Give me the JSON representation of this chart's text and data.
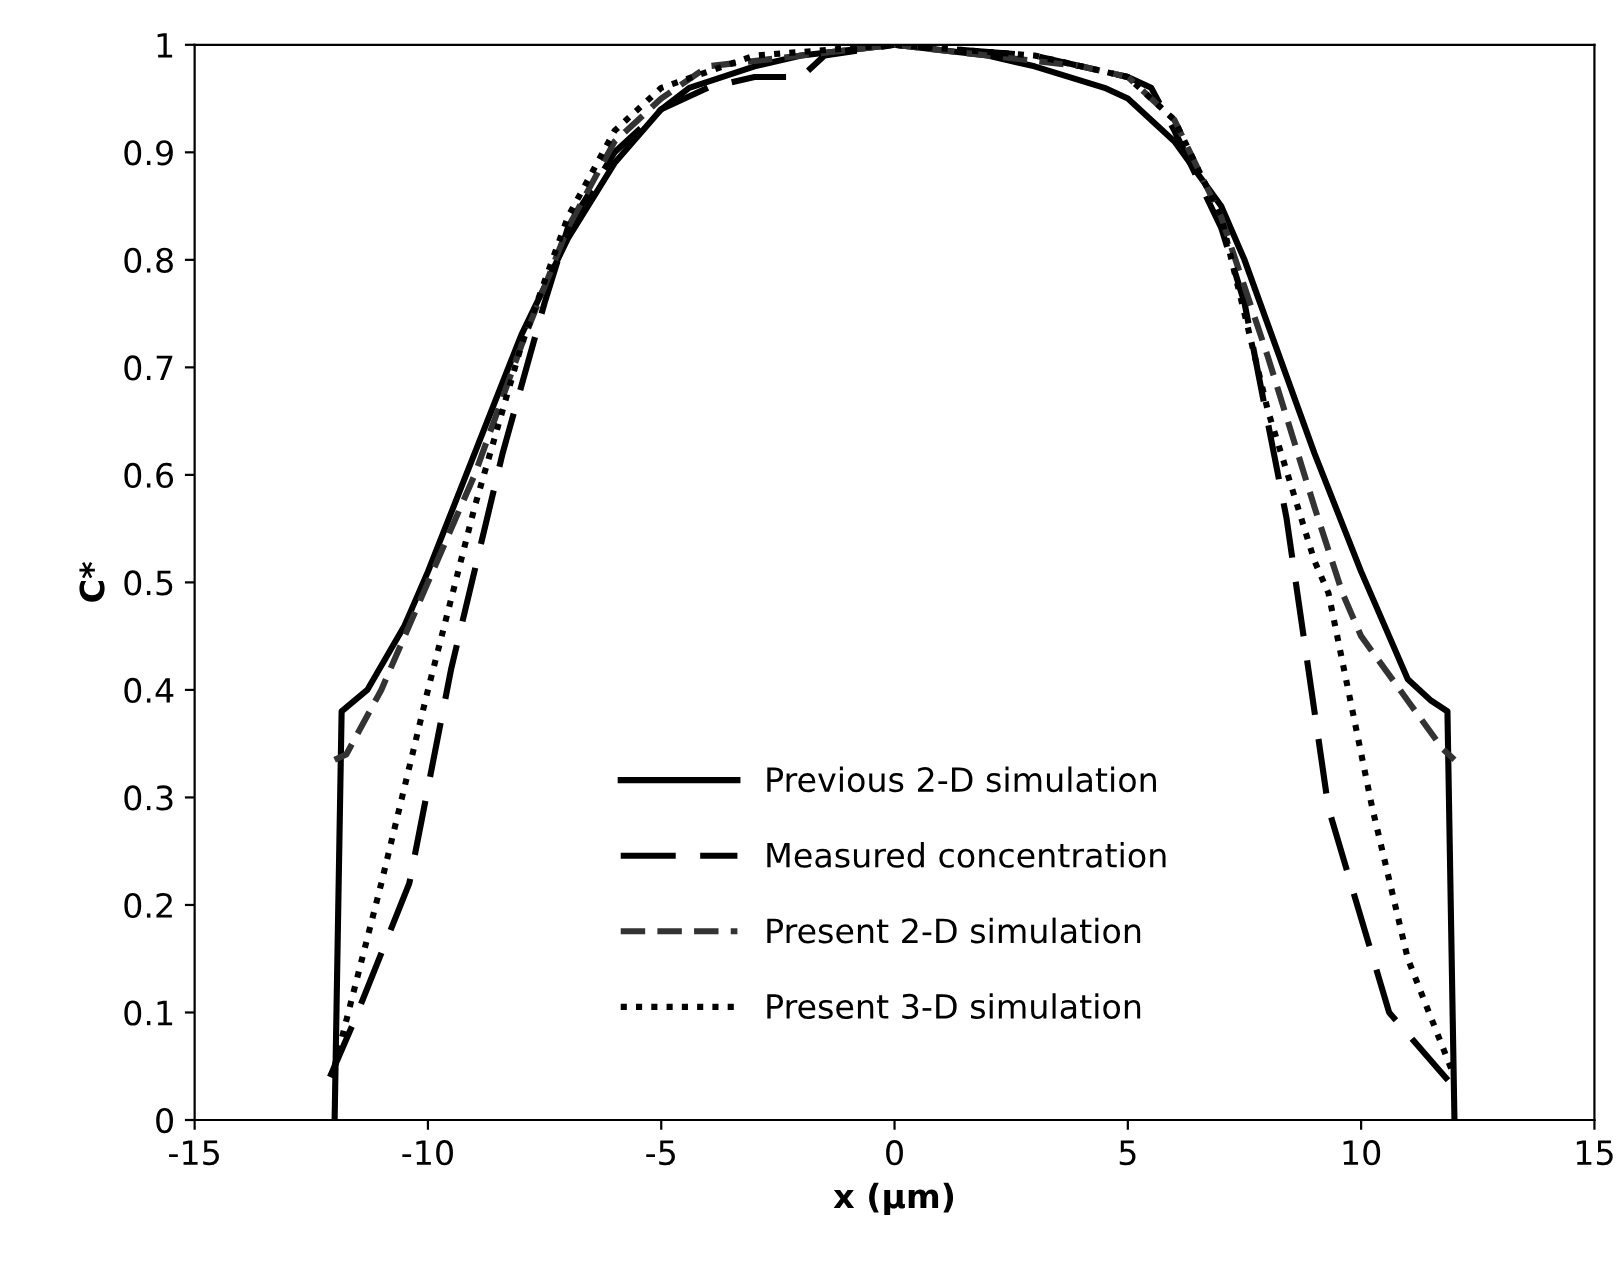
{
  "chart_data": {
    "type": "line",
    "xlabel": "x (μm)",
    "ylabel": "C*",
    "xlim": [
      -15,
      15
    ],
    "ylim": [
      0,
      1
    ],
    "xticks": [
      -15,
      -10,
      -5,
      0,
      5,
      10,
      15
    ],
    "yticks": [
      0,
      0.1,
      0.2,
      0.3,
      0.4,
      0.5,
      0.6,
      0.7,
      0.8,
      0.9,
      1
    ],
    "grid": false,
    "legend": "bottom",
    "series": [
      {
        "name": "Previous 2-D simulation",
        "color": "#000000",
        "line_style": "solid",
        "x": [
          -12,
          -11.85,
          -11.3,
          -10.5,
          -10,
          -9,
          -8,
          -7,
          -6,
          -5,
          -4.4,
          -3,
          -2,
          0,
          2,
          3,
          4.5,
          5,
          6,
          7,
          7.5,
          8,
          9,
          10,
          10.5,
          11,
          11.5,
          11.85,
          12
        ],
        "values": [
          0,
          0.38,
          0.4,
          0.46,
          0.51,
          0.62,
          0.73,
          0.82,
          0.89,
          0.94,
          0.96,
          0.98,
          0.99,
          1,
          0.99,
          0.98,
          0.96,
          0.95,
          0.91,
          0.85,
          0.8,
          0.74,
          0.62,
          0.51,
          0.46,
          0.41,
          0.39,
          0.38,
          0
        ]
      },
      {
        "name": "Measured concentration",
        "color": "#000000",
        "line_style": "longdash",
        "x": [
          -12.1,
          -11.6,
          -10.4,
          -9.5,
          -8.4,
          -7.5,
          -7,
          -6,
          -5,
          -4,
          -3,
          -2,
          -1.5,
          0,
          3,
          5,
          5.5,
          6,
          7,
          7.5,
          8.4,
          9.3,
          10.6,
          11.6,
          12
        ],
        "values": [
          0.04,
          0.09,
          0.22,
          0.42,
          0.62,
          0.76,
          0.83,
          0.9,
          0.94,
          0.96,
          0.97,
          0.97,
          0.99,
          1,
          0.99,
          0.97,
          0.96,
          0.92,
          0.83,
          0.76,
          0.56,
          0.29,
          0.1,
          0.05,
          0.03
        ]
      },
      {
        "name": "Present 2-D simulation",
        "color": "#333333",
        "line_style": "dashed",
        "x": [
          -12,
          -11.75,
          -11,
          -10,
          -9,
          -8,
          -7,
          -6,
          -5,
          -4,
          -2,
          0,
          2,
          4,
          5,
          6,
          7,
          8,
          9,
          9.6,
          10,
          11,
          11.75,
          12
        ],
        "values": [
          0.335,
          0.34,
          0.4,
          0.5,
          0.6,
          0.72,
          0.83,
          0.91,
          0.95,
          0.98,
          0.99,
          1,
          0.99,
          0.98,
          0.97,
          0.93,
          0.84,
          0.71,
          0.57,
          0.49,
          0.45,
          0.39,
          0.345,
          0.335
        ]
      },
      {
        "name": "Present 3-D simulation",
        "color": "#000000",
        "line_style": "dotted",
        "x": [
          -12,
          -11,
          -10,
          -9,
          -8,
          -7,
          -6,
          -5,
          -3,
          0,
          3,
          5,
          6,
          7,
          8,
          9,
          9.3,
          10.24,
          11,
          12
        ],
        "values": [
          0.05,
          0.22,
          0.4,
          0.57,
          0.72,
          0.84,
          0.92,
          0.96,
          0.99,
          1,
          0.99,
          0.97,
          0.93,
          0.84,
          0.66,
          0.52,
          0.49,
          0.29,
          0.15,
          0.04
        ]
      }
    ]
  }
}
